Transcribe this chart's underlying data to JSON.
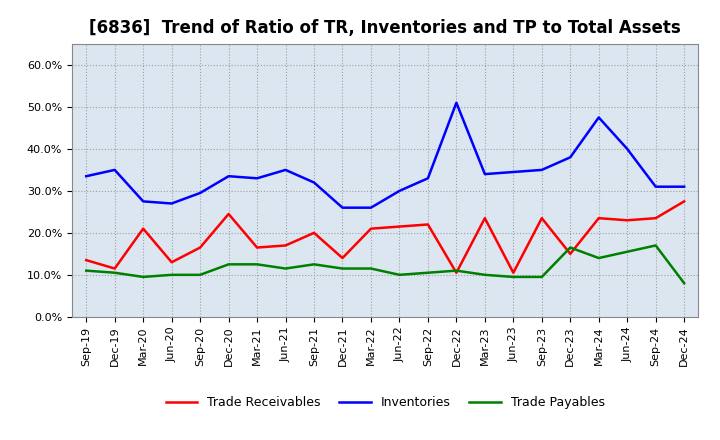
{
  "title": "[6836]  Trend of Ratio of TR, Inventories and TP to Total Assets",
  "x_labels": [
    "Sep-19",
    "Dec-19",
    "Mar-20",
    "Jun-20",
    "Sep-20",
    "Dec-20",
    "Mar-21",
    "Jun-21",
    "Sep-21",
    "Dec-21",
    "Mar-22",
    "Jun-22",
    "Sep-22",
    "Dec-22",
    "Mar-23",
    "Jun-23",
    "Sep-23",
    "Dec-23",
    "Mar-24",
    "Jun-24",
    "Sep-24",
    "Dec-24"
  ],
  "trade_receivables": [
    13.5,
    11.5,
    21.0,
    13.0,
    16.5,
    24.5,
    16.5,
    17.0,
    20.0,
    14.0,
    21.0,
    21.5,
    22.0,
    10.5,
    23.5,
    10.5,
    23.5,
    15.0,
    23.5,
    23.0,
    23.5,
    27.5
  ],
  "inventories": [
    33.5,
    35.0,
    27.5,
    27.0,
    29.5,
    33.5,
    33.0,
    35.0,
    32.0,
    26.0,
    26.0,
    30.0,
    33.0,
    51.0,
    34.0,
    34.5,
    35.0,
    38.0,
    47.5,
    40.0,
    31.0,
    31.0
  ],
  "trade_payables": [
    11.0,
    10.5,
    9.5,
    10.0,
    10.0,
    12.5,
    12.5,
    11.5,
    12.5,
    11.5,
    11.5,
    10.0,
    10.5,
    11.0,
    10.0,
    9.5,
    9.5,
    16.5,
    14.0,
    15.5,
    17.0,
    8.0
  ],
  "tr_color": "#ff0000",
  "inv_color": "#0000ff",
  "tp_color": "#008000",
  "ylim": [
    0,
    65
  ],
  "yticks": [
    0,
    10,
    20,
    30,
    40,
    50,
    60
  ],
  "ytick_labels": [
    "0.0%",
    "10.0%",
    "20.0%",
    "30.0%",
    "40.0%",
    "50.0%",
    "60.0%"
  ],
  "background_color": "#ffffff",
  "plot_bg_color": "#dce6f1",
  "grid_color": "#999999",
  "legend_labels": [
    "Trade Receivables",
    "Inventories",
    "Trade Payables"
  ],
  "title_fontsize": 12,
  "tick_fontsize": 8,
  "legend_fontsize": 9,
  "linewidth": 1.8
}
